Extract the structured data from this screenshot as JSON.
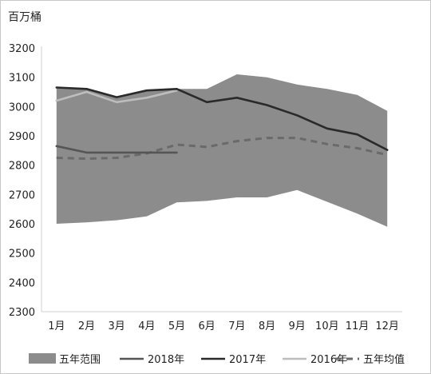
{
  "chart_data": {
    "type": "line",
    "unit": "百万桶",
    "categories": [
      "1月",
      "2月",
      "3月",
      "4月",
      "5月",
      "6月",
      "7月",
      "8月",
      "9月",
      "10月",
      "11月",
      "12月"
    ],
    "yticks": [
      "2300",
      "2400",
      "2500",
      "2600",
      "2700",
      "2800",
      "2900",
      "3000",
      "3100",
      "3200"
    ],
    "ylim": [
      2300,
      3200
    ],
    "grid": false,
    "legend_position": "bottom",
    "range_band": {
      "name": "五年范围",
      "color": "#8c8c8c",
      "upper": [
        3065,
        3060,
        3030,
        3055,
        3060,
        3060,
        3110,
        3100,
        3075,
        3060,
        3040,
        2985
      ],
      "lower": [
        2600,
        2605,
        2612,
        2625,
        2673,
        2678,
        2690,
        2690,
        2715,
        2675,
        2635,
        2590
      ]
    },
    "series": [
      {
        "name": "2018年",
        "color": "#555555",
        "style": "solid",
        "values": [
          2865,
          2843,
          2843,
          2843,
          2843,
          null,
          null,
          null,
          null,
          null,
          null,
          null
        ]
      },
      {
        "name": "2017年",
        "color": "#2a2a2a",
        "style": "solid",
        "values": [
          3065,
          3060,
          3032,
          3055,
          3060,
          3015,
          3030,
          3005,
          2970,
          2925,
          2905,
          2852
        ]
      },
      {
        "name": "2016年",
        "color": "#bdbdbd",
        "style": "solid",
        "values": [
          3020,
          3050,
          3015,
          3030,
          3055,
          null,
          null,
          null,
          null,
          null,
          null,
          null
        ]
      },
      {
        "name": "五年均值",
        "color": "#6a6a6a",
        "style": "dashed",
        "values": [
          2825,
          2822,
          2825,
          2840,
          2870,
          2862,
          2882,
          2893,
          2893,
          2872,
          2858,
          2835
        ]
      }
    ]
  }
}
